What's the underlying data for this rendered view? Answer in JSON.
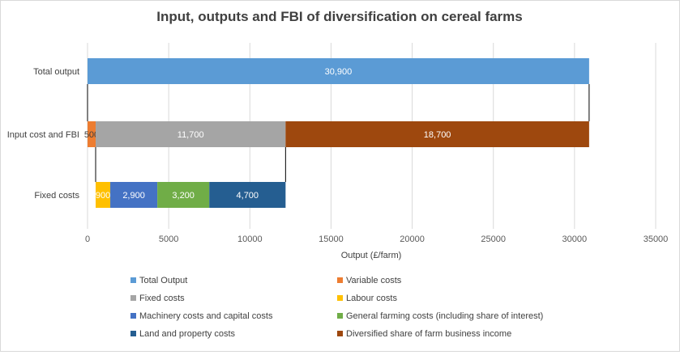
{
  "chart_data": {
    "type": "bar",
    "orientation": "horizontal",
    "stacked": true,
    "title": "Input, outputs and FBI of diversification on cereal farms",
    "xlabel": "Output (£/farm)",
    "ylabel": "",
    "xlim": [
      0,
      35000
    ],
    "x_ticks": [
      "0",
      "5000",
      "10000",
      "15000",
      "20000",
      "25000",
      "30000",
      "35000"
    ],
    "categories": [
      "Total output",
      "Input cost and FBI",
      "Fixed costs"
    ],
    "segments": [
      {
        "category": "Total output",
        "series": "Total Output",
        "start": 0,
        "value": 30900,
        "label": "30,900"
      },
      {
        "category": "Input cost and FBI",
        "series": "Variable costs",
        "start": 0,
        "value": 500,
        "label": "500"
      },
      {
        "category": "Input cost and FBI",
        "series": "Fixed costs",
        "start": 500,
        "value": 11700,
        "label": "11,700"
      },
      {
        "category": "Input cost and FBI",
        "series": "Diversified share of farm business income",
        "start": 12200,
        "value": 18700,
        "label": "18,700"
      },
      {
        "category": "Fixed costs",
        "series": "Labour costs",
        "start": 500,
        "value": 900,
        "label": "900"
      },
      {
        "category": "Fixed costs",
        "series": "Machinery costs and capital costs",
        "start": 1400,
        "value": 2900,
        "label": "2,900"
      },
      {
        "category": "Fixed costs",
        "series": "General farming costs (including share of interest)",
        "start": 4300,
        "value": 3200,
        "label": "3,200"
      },
      {
        "category": "Fixed costs",
        "series": "Land and property costs",
        "start": 7500,
        "value": 4700,
        "label": "4,700"
      }
    ],
    "series": [
      {
        "name": "Total Output",
        "color": "#5b9bd5"
      },
      {
        "name": "Variable costs",
        "color": "#ed7d31"
      },
      {
        "name": "Fixed costs",
        "color": "#a5a5a5"
      },
      {
        "name": "Labour costs",
        "color": "#ffc000"
      },
      {
        "name": "Machinery costs and capital costs",
        "color": "#4472c4"
      },
      {
        "name": "General farming costs (including share of interest)",
        "color": "#70ad47"
      },
      {
        "name": "Land and property costs",
        "color": "#255e91"
      },
      {
        "name": "Diversified share of farm business income",
        "color": "#9e480e"
      }
    ],
    "label_colors": {
      "Total Output": "#ffffff",
      "Variable costs": "#404040",
      "Fixed costs": "#ffffff",
      "Labour costs": "#ffffff",
      "Machinery costs and capital costs": "#ffffff",
      "General farming costs (including share of interest)": "#ffffff",
      "Land and property costs": "#ffffff",
      "Diversified share of farm business income": "#ffffff"
    },
    "grid": true,
    "legend_position": "bottom"
  }
}
